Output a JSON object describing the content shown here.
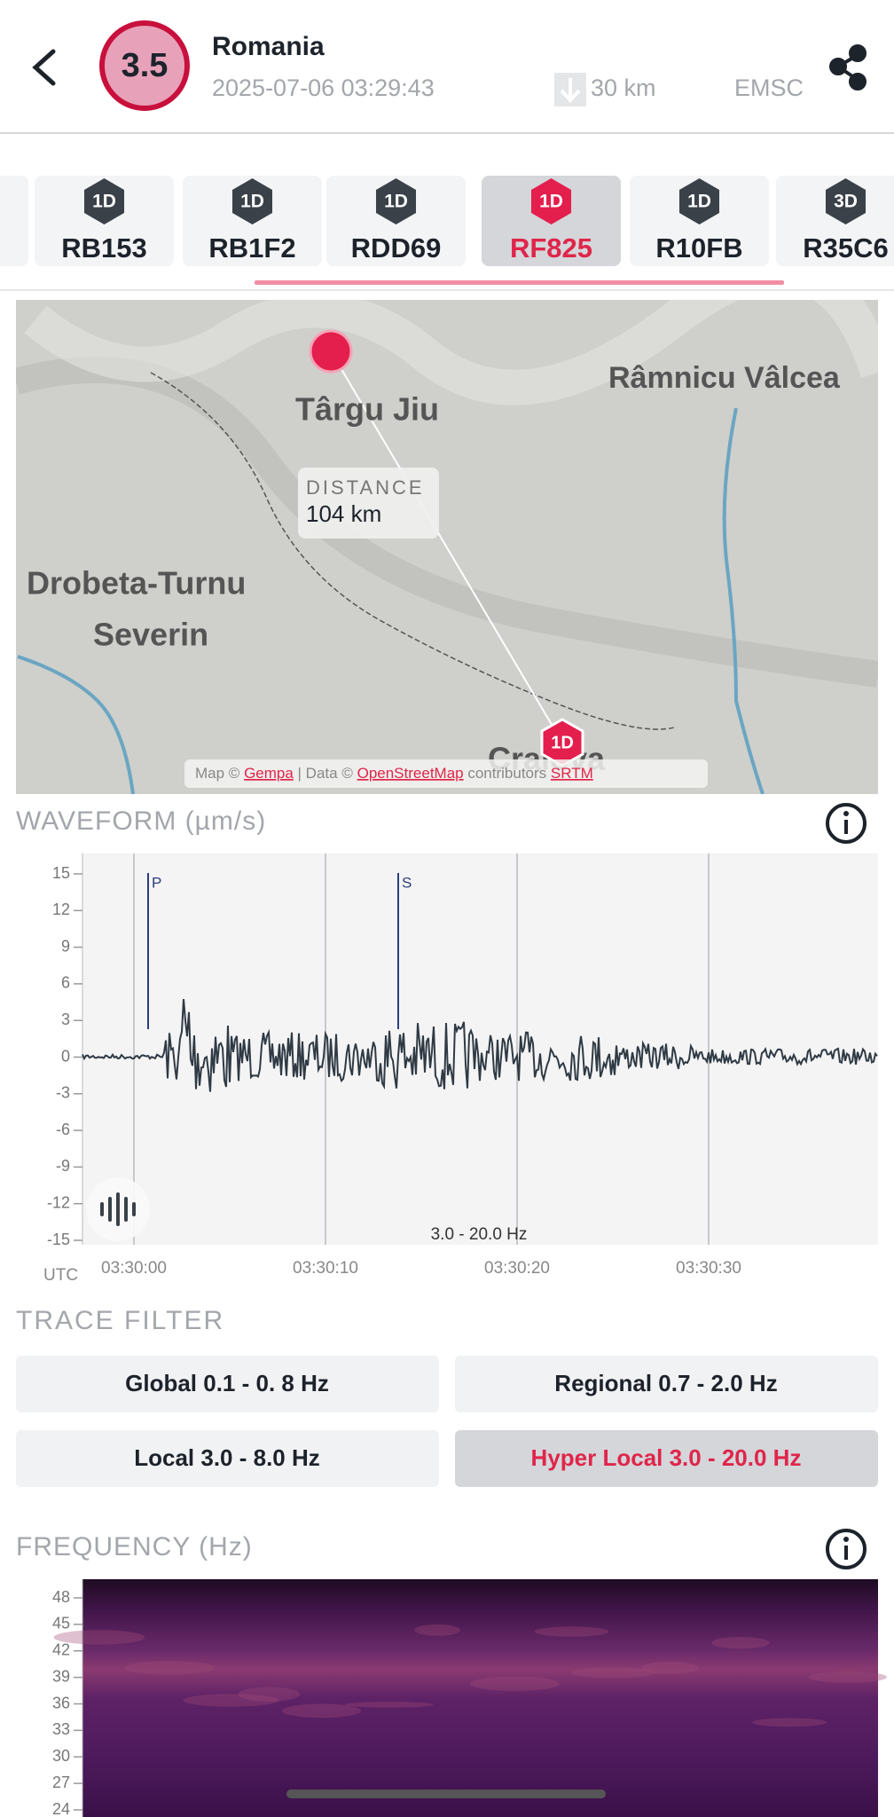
{
  "header": {
    "magnitude": "3.5",
    "location": "Romania",
    "datetime": "2025-07-06 03:29:43",
    "depth": "30 km",
    "agency": "EMSC"
  },
  "tabs": [
    {
      "badge": "1D",
      "label": "RB153"
    },
    {
      "badge": "1D",
      "label": "RB1F2"
    },
    {
      "badge": "1D",
      "label": "RDD69"
    },
    {
      "badge": "1D",
      "label": "RF825",
      "selected": true
    },
    {
      "badge": "1D",
      "label": "R10FB"
    },
    {
      "badge": "3D",
      "label": "R35C6"
    }
  ],
  "map": {
    "places": [
      "Târgu Jiu",
      "Râmnicu Vâlcea",
      "Drobeta-Turnu",
      "Severin",
      "Craiova"
    ],
    "distance_label": "DISTANCE",
    "distance": "104 km",
    "station_badge": "1D",
    "attribution": [
      "Map ©",
      "Gempa",
      "| Data ©",
      "OpenStreetMap",
      "contributors",
      "SRTM"
    ]
  },
  "waveform": {
    "title": "WAVEFORM (µm/s)",
    "yticks": [
      15,
      12,
      9,
      6,
      3,
      0,
      -3,
      -6,
      -9,
      -12,
      -15
    ],
    "xticks": [
      "03:30:00",
      "03:30:10",
      "03:30:20",
      "03:30:30"
    ],
    "time_zone": "UTC",
    "phases": [
      "P",
      "S"
    ],
    "band": "3.0 - 20.0 Hz"
  },
  "trace_filter": {
    "title": "TRACE FILTER",
    "options": [
      {
        "label": "Global 0.1 - 0. 8 Hz"
      },
      {
        "label": "Regional 0.7 - 2.0 Hz"
      },
      {
        "label": "Local 3.0 - 8.0 Hz"
      },
      {
        "label": "Hyper Local 3.0 - 20.0 Hz",
        "selected": true
      }
    ]
  },
  "frequency": {
    "title": "FREQUENCY (Hz)",
    "yticks": [
      48,
      45,
      42,
      39,
      36,
      33,
      30,
      27,
      24
    ]
  }
}
